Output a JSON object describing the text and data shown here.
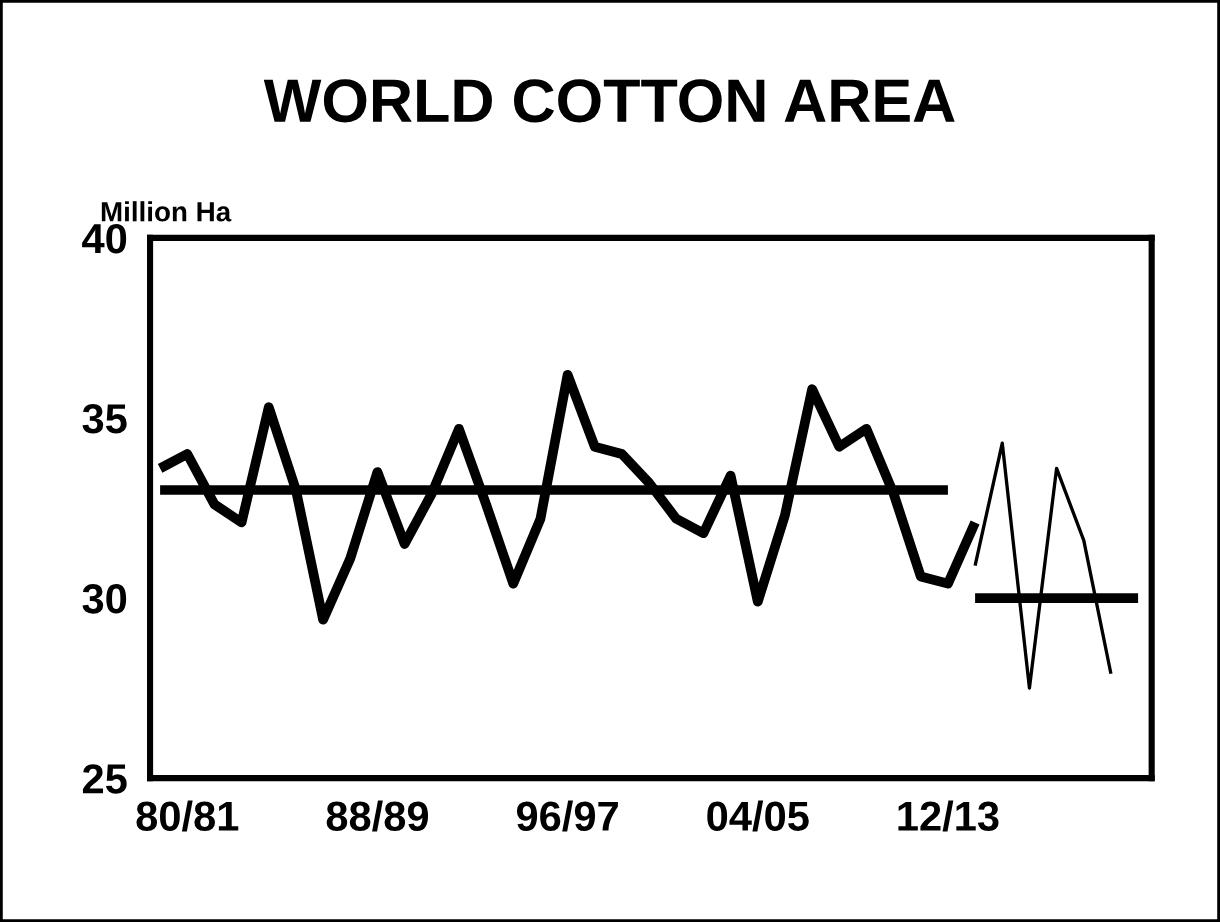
{
  "chart_data": {
    "type": "line",
    "title": "WORLD COTTON AREA",
    "ylabel": "Million Ha",
    "categories": [
      null,
      "80/81",
      null,
      null,
      null,
      null,
      null,
      null,
      "88/89",
      null,
      null,
      null,
      null,
      null,
      null,
      "96/97",
      null,
      null,
      null,
      null,
      null,
      null,
      "04/05",
      null,
      null,
      null,
      null,
      null,
      null,
      "12/13",
      null,
      null,
      null,
      null,
      null,
      null,
      null
    ],
    "ylim": [
      25,
      40
    ],
    "yticks": [
      25,
      30,
      35,
      40
    ],
    "grid": false,
    "legend": false,
    "marker": "none",
    "line_style": "solid",
    "series": [
      {
        "color": "#000000",
        "values": [
          33.6,
          34.0,
          32.6,
          32.1,
          35.3,
          33.0,
          29.4,
          31.1,
          33.5,
          31.5,
          32.9,
          34.7,
          32.6,
          30.4,
          32.2,
          36.2,
          34.2,
          34.0,
          33.2,
          32.2,
          31.8,
          33.4,
          29.9,
          32.3,
          35.8,
          34.2,
          34.7,
          32.9,
          30.6,
          30.4,
          32.1,
          null,
          null,
          null,
          null,
          null,
          null
        ]
      },
      {
        "color": "#000000",
        "values": [
          33,
          33,
          33,
          33,
          33,
          33,
          33,
          33,
          33,
          33,
          33,
          33,
          33,
          33,
          33,
          33,
          33,
          33,
          33,
          33,
          33,
          33,
          33,
          33,
          33,
          33,
          33,
          33,
          33,
          33,
          null,
          null,
          null,
          null,
          null,
          null,
          null
        ]
      },
      {
        "color": "#000000",
        "values": [
          null,
          null,
          null,
          null,
          null,
          null,
          null,
          null,
          null,
          null,
          null,
          null,
          null,
          null,
          null,
          null,
          null,
          null,
          null,
          null,
          null,
          null,
          null,
          null,
          null,
          null,
          null,
          null,
          null,
          null,
          30,
          30,
          30,
          30,
          30,
          30,
          30
        ]
      },
      {
        "color": "#000000",
        "values": [
          null,
          null,
          null,
          null,
          null,
          null,
          null,
          null,
          null,
          null,
          null,
          null,
          null,
          null,
          null,
          null,
          null,
          null,
          null,
          null,
          null,
          null,
          null,
          null,
          null,
          null,
          null,
          null,
          null,
          null,
          30.9,
          34.3,
          27.5,
          33.6,
          31.6,
          27.9,
          null
        ]
      }
    ]
  }
}
